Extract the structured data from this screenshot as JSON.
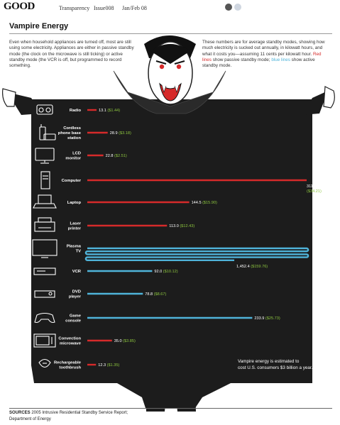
{
  "header": {
    "logo": "GOOD",
    "section": "Transparency",
    "issue": "Issue008",
    "date": "Jan/Feb 08"
  },
  "title": "Vampire Energy",
  "intro_left": "Even when household appliances are turned off, most are still using some electricity. Appliances are either in passive standby mode (the clock on the microwave is still ticking) or active standby mode (the VCR is off, but programmed to record something.",
  "intro_right_pre": "These numbers are for average standby modes, showing how much electricity is sucked out annually, in kilowatt hours, and what it costs you—assuming 11 cents per kilowatt hour.",
  "intro_right_red": "Red lines",
  "intro_right_mid": "show passive standby mode;",
  "intro_right_blue": "blue lines",
  "intro_right_post": "show active standby mode.",
  "callout": "Vampire energy is estimated to cost U.S. consumers $3 billion a year.",
  "footer": {
    "sources_label": "SOURCES",
    "sources_line1": "2005 Intrusive Residential Standby Service Report;",
    "sources_line2": "Department of Energy"
  },
  "colors": {
    "passive": "#d62a2a",
    "active": "#4fb3d9",
    "cost": "#8dc63f",
    "background": "#1c1c1c"
  },
  "chart_data": {
    "type": "bar",
    "orientation": "horizontal",
    "categories": [
      "Radio",
      "Cordless phone base station",
      "LCD monitor",
      "Computer",
      "Laptop",
      "Laser printer",
      "Plasma TV",
      "VCR",
      "DVD player",
      "Game console",
      "Convection microwave",
      "Rechargeable toothbrush"
    ],
    "label_lines": [
      [
        "Radio"
      ],
      [
        "Cordless",
        "phone base",
        "station"
      ],
      [
        "LCD",
        "monitor"
      ],
      [
        "Computer"
      ],
      [
        "Laptop"
      ],
      [
        "Laser",
        "printer"
      ],
      [
        "Plasma",
        "TV"
      ],
      [
        "VCR"
      ],
      [
        "DVD",
        "player"
      ],
      [
        "Game",
        "console"
      ],
      [
        "Convection",
        "microwave"
      ],
      [
        "Rechargeable",
        "toothbrush"
      ]
    ],
    "values": [
      13.1,
      28.9,
      22.8,
      311.0,
      144.5,
      113.0,
      1452.4,
      92.0,
      78.8,
      233.9,
      35.0,
      12.3
    ],
    "value_labels": [
      "13.1",
      "28.9",
      "22.8",
      "311.0",
      "144.5",
      "113.0",
      "1,452.4",
      "92.0",
      "78.8",
      "233.9",
      "35.0",
      "12.3"
    ],
    "costs": [
      "($1.44)",
      "($3.18)",
      "($2.51)",
      "($34.21)",
      "($15.90)",
      "($12.43)",
      "($159.76)",
      "($10.12)",
      "($8.67)",
      "($25.73)",
      "($3.85)",
      "($1.35)"
    ],
    "modes": [
      "passive",
      "passive",
      "passive",
      "passive",
      "passive",
      "passive",
      "active",
      "active",
      "active",
      "active",
      "passive",
      "passive"
    ],
    "unit": "kilowatt hours per year",
    "icons": [
      "radio-icon",
      "cordless-phone-icon",
      "lcd-monitor-icon",
      "computer-tower-icon",
      "laptop-icon",
      "laser-printer-icon",
      "plasma-tv-icon",
      "vcr-icon",
      "dvd-player-icon",
      "game-controller-icon",
      "microwave-icon",
      "toothbrush-icon"
    ]
  }
}
